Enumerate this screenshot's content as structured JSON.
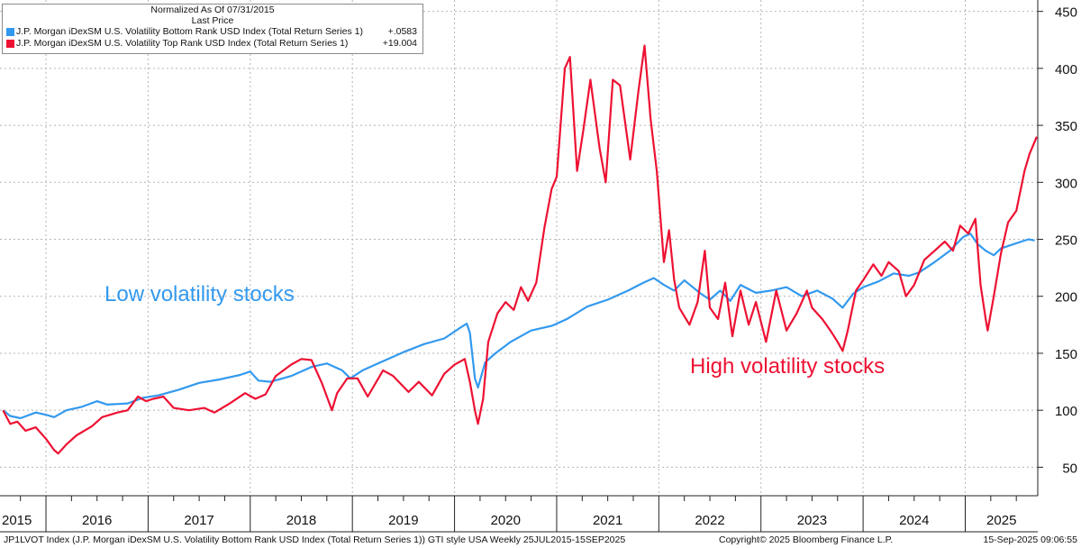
{
  "legend": {
    "header_line1": "Normalized As Of 07/31/2015",
    "header_line2": "Last Price",
    "entries": [
      {
        "label": "J.P. Morgan iDexSM U.S. Volatility Bottom Rank USD Index (Total Return Series 1)",
        "value": "+.0583",
        "color": "#3399ee"
      },
      {
        "label": "J.P. Morgan iDexSM U.S. Volatility Top Rank USD Index (Total Return Series 1)",
        "value": "+19.004",
        "color": "#ee1133"
      }
    ]
  },
  "annotations": {
    "low": "Low volatility stocks",
    "high": "High volatility stocks"
  },
  "footer": {
    "left": "JP1LVOT Index (J.P. Morgan iDexSM U.S. Volatility Bottom Rank USD Index (Total Return Series 1)) GTI style USA  Weekly 25JUL2015-15SEP2025",
    "center": "Copyright© 2025 Bloomberg Finance L.P.",
    "right": "15-Sep-2025 09:06:55"
  },
  "chart_data": {
    "type": "line",
    "xlim": [
      2015.55,
      2025.71
    ],
    "ylim": [
      25,
      460
    ],
    "y_ticks": [
      50,
      100,
      150,
      200,
      250,
      300,
      350,
      400,
      450
    ],
    "year_labels": [
      "2015",
      "2016",
      "2017",
      "2018",
      "2019",
      "2020",
      "2021",
      "2022",
      "2023",
      "2024",
      "2025"
    ],
    "grid": true,
    "legend_position": "top-left",
    "series": [
      {
        "name": "J.P. Morgan iDexSM U.S. Volatility Bottom Rank USD Index (Total Return Series 1)",
        "color": "#3399ee",
        "points": [
          [
            2015.58,
            100
          ],
          [
            2015.65,
            95
          ],
          [
            2015.75,
            93
          ],
          [
            2015.9,
            98
          ],
          [
            2016.0,
            96
          ],
          [
            2016.08,
            94
          ],
          [
            2016.2,
            100
          ],
          [
            2016.35,
            103
          ],
          [
            2016.5,
            108
          ],
          [
            2016.6,
            105
          ],
          [
            2016.8,
            106
          ],
          [
            2016.95,
            111
          ],
          [
            2017.1,
            113
          ],
          [
            2017.3,
            118
          ],
          [
            2017.5,
            124
          ],
          [
            2017.7,
            127
          ],
          [
            2017.9,
            131
          ],
          [
            2018.0,
            134
          ],
          [
            2018.08,
            126
          ],
          [
            2018.2,
            125
          ],
          [
            2018.4,
            130
          ],
          [
            2018.6,
            138
          ],
          [
            2018.75,
            141
          ],
          [
            2018.9,
            135
          ],
          [
            2018.98,
            128
          ],
          [
            2019.1,
            135
          ],
          [
            2019.3,
            143
          ],
          [
            2019.5,
            151
          ],
          [
            2019.7,
            158
          ],
          [
            2019.9,
            163
          ],
          [
            2020.05,
            172
          ],
          [
            2020.12,
            176
          ],
          [
            2020.15,
            168
          ],
          [
            2020.2,
            128
          ],
          [
            2020.23,
            120
          ],
          [
            2020.3,
            142
          ],
          [
            2020.4,
            150
          ],
          [
            2020.55,
            160
          ],
          [
            2020.75,
            170
          ],
          [
            2020.95,
            174
          ],
          [
            2021.1,
            180
          ],
          [
            2021.3,
            191
          ],
          [
            2021.5,
            197
          ],
          [
            2021.7,
            205
          ],
          [
            2021.85,
            212
          ],
          [
            2021.95,
            216
          ],
          [
            2022.05,
            210
          ],
          [
            2022.15,
            205
          ],
          [
            2022.25,
            214
          ],
          [
            2022.4,
            203
          ],
          [
            2022.5,
            197
          ],
          [
            2022.6,
            205
          ],
          [
            2022.7,
            196
          ],
          [
            2022.8,
            210
          ],
          [
            2022.95,
            203
          ],
          [
            2023.1,
            205
          ],
          [
            2023.25,
            208
          ],
          [
            2023.4,
            200
          ],
          [
            2023.55,
            205
          ],
          [
            2023.7,
            198
          ],
          [
            2023.8,
            190
          ],
          [
            2023.9,
            202
          ],
          [
            2024.0,
            208
          ],
          [
            2024.15,
            213
          ],
          [
            2024.3,
            220
          ],
          [
            2024.45,
            218
          ],
          [
            2024.55,
            221
          ],
          [
            2024.7,
            230
          ],
          [
            2024.85,
            240
          ],
          [
            2024.98,
            252
          ],
          [
            2025.05,
            255
          ],
          [
            2025.12,
            246
          ],
          [
            2025.2,
            240
          ],
          [
            2025.28,
            236
          ],
          [
            2025.35,
            242
          ],
          [
            2025.45,
            245
          ],
          [
            2025.55,
            248
          ],
          [
            2025.62,
            250
          ],
          [
            2025.68,
            249
          ]
        ]
      },
      {
        "name": "J.P. Morgan iDexSM U.S. Volatility Top Rank USD Index (Total Return Series 1)",
        "color": "#ee1133",
        "points": [
          [
            2015.58,
            100
          ],
          [
            2015.65,
            88
          ],
          [
            2015.72,
            90
          ],
          [
            2015.8,
            82
          ],
          [
            2015.9,
            85
          ],
          [
            2016.0,
            75
          ],
          [
            2016.08,
            65
          ],
          [
            2016.12,
            62
          ],
          [
            2016.2,
            70
          ],
          [
            2016.3,
            78
          ],
          [
            2016.45,
            86
          ],
          [
            2016.55,
            94
          ],
          [
            2016.7,
            98
          ],
          [
            2016.8,
            100
          ],
          [
            2016.9,
            112
          ],
          [
            2016.98,
            108
          ],
          [
            2017.05,
            110
          ],
          [
            2017.15,
            112
          ],
          [
            2017.25,
            102
          ],
          [
            2017.4,
            100
          ],
          [
            2017.55,
            102
          ],
          [
            2017.65,
            98
          ],
          [
            2017.8,
            106
          ],
          [
            2017.95,
            115
          ],
          [
            2018.05,
            110
          ],
          [
            2018.15,
            114
          ],
          [
            2018.25,
            130
          ],
          [
            2018.4,
            140
          ],
          [
            2018.5,
            145
          ],
          [
            2018.6,
            144
          ],
          [
            2018.7,
            124
          ],
          [
            2018.8,
            100
          ],
          [
            2018.85,
            115
          ],
          [
            2018.95,
            128
          ],
          [
            2019.05,
            128
          ],
          [
            2019.15,
            112
          ],
          [
            2019.3,
            135
          ],
          [
            2019.4,
            130
          ],
          [
            2019.55,
            116
          ],
          [
            2019.65,
            125
          ],
          [
            2019.78,
            113
          ],
          [
            2019.9,
            132
          ],
          [
            2020.0,
            140
          ],
          [
            2020.1,
            145
          ],
          [
            2020.15,
            125
          ],
          [
            2020.2,
            100
          ],
          [
            2020.23,
            88
          ],
          [
            2020.28,
            110
          ],
          [
            2020.33,
            160
          ],
          [
            2020.42,
            185
          ],
          [
            2020.5,
            195
          ],
          [
            2020.58,
            188
          ],
          [
            2020.65,
            208
          ],
          [
            2020.72,
            196
          ],
          [
            2020.8,
            212
          ],
          [
            2020.88,
            260
          ],
          [
            2020.95,
            294
          ],
          [
            2021.0,
            305
          ],
          [
            2021.08,
            400
          ],
          [
            2021.13,
            410
          ],
          [
            2021.2,
            310
          ],
          [
            2021.26,
            345
          ],
          [
            2021.33,
            390
          ],
          [
            2021.42,
            330
          ],
          [
            2021.48,
            300
          ],
          [
            2021.55,
            390
          ],
          [
            2021.62,
            385
          ],
          [
            2021.72,
            320
          ],
          [
            2021.8,
            380
          ],
          [
            2021.86,
            420
          ],
          [
            2021.92,
            355
          ],
          [
            2021.98,
            310
          ],
          [
            2022.05,
            230
          ],
          [
            2022.1,
            258
          ],
          [
            2022.15,
            215
          ],
          [
            2022.2,
            190
          ],
          [
            2022.3,
            175
          ],
          [
            2022.38,
            195
          ],
          [
            2022.45,
            240
          ],
          [
            2022.5,
            190
          ],
          [
            2022.58,
            180
          ],
          [
            2022.65,
            212
          ],
          [
            2022.72,
            165
          ],
          [
            2022.8,
            205
          ],
          [
            2022.88,
            175
          ],
          [
            2022.95,
            195
          ],
          [
            2023.05,
            160
          ],
          [
            2023.15,
            205
          ],
          [
            2023.25,
            170
          ],
          [
            2023.35,
            185
          ],
          [
            2023.45,
            205
          ],
          [
            2023.5,
            190
          ],
          [
            2023.6,
            180
          ],
          [
            2023.68,
            170
          ],
          [
            2023.75,
            160
          ],
          [
            2023.8,
            152
          ],
          [
            2023.85,
            170
          ],
          [
            2023.93,
            205
          ],
          [
            2024.0,
            214
          ],
          [
            2024.1,
            228
          ],
          [
            2024.18,
            218
          ],
          [
            2024.25,
            230
          ],
          [
            2024.35,
            222
          ],
          [
            2024.42,
            200
          ],
          [
            2024.5,
            210
          ],
          [
            2024.6,
            232
          ],
          [
            2024.7,
            240
          ],
          [
            2024.8,
            248
          ],
          [
            2024.88,
            240
          ],
          [
            2024.95,
            262
          ],
          [
            2025.03,
            255
          ],
          [
            2025.1,
            268
          ],
          [
            2025.15,
            210
          ],
          [
            2025.2,
            180
          ],
          [
            2025.22,
            170
          ],
          [
            2025.28,
            200
          ],
          [
            2025.35,
            238
          ],
          [
            2025.42,
            265
          ],
          [
            2025.5,
            275
          ],
          [
            2025.58,
            310
          ],
          [
            2025.63,
            325
          ],
          [
            2025.7,
            340
          ]
        ]
      }
    ]
  }
}
